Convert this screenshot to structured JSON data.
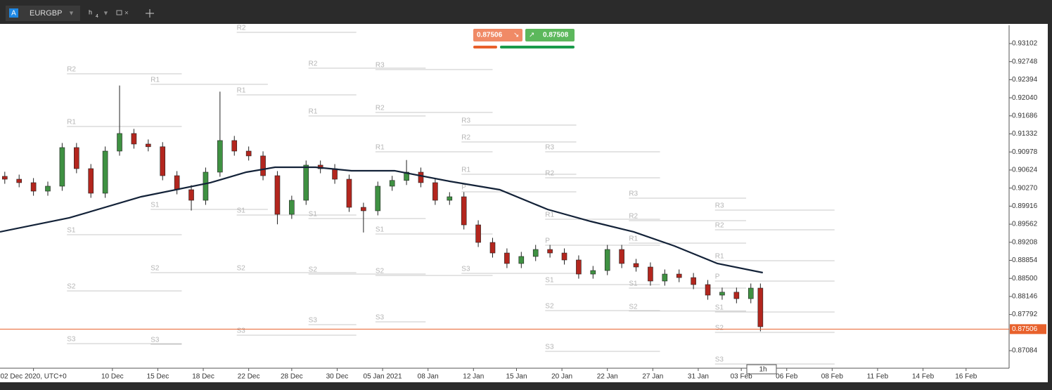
{
  "toolbar": {
    "badge": "A",
    "symbol": "EURGBP",
    "timeframe": "h",
    "timeframe_sub": "4"
  },
  "trade": {
    "sell": "0.87506",
    "buy": "0.87508"
  },
  "interval_badge": "1h",
  "chart_data": {
    "type": "candlestick",
    "xlim": [
      0,
      422
    ],
    "ylim": [
      0.8674,
      0.9346
    ],
    "yticks": [
      0.93102,
      0.92748,
      0.92394,
      {
        "value": 0.9204,
        "label": "0.92040"
      },
      0.91686,
      0.91332,
      0.90978,
      0.90624,
      {
        "value": 0.9027,
        "label": "0.90270"
      },
      0.89916,
      0.89562,
      0.89208,
      0.88854,
      {
        "value": 0.885,
        "label": "0.88500"
      },
      0.88146,
      0.87792,
      0.87084
    ],
    "xticks": [
      {
        "value": 14,
        "label": "02 Dec 2020, UTC+0"
      },
      {
        "value": 47,
        "label": "10 Dec"
      },
      {
        "value": 66,
        "label": "15 Dec"
      },
      {
        "value": 85,
        "label": "18 Dec"
      },
      {
        "value": 104,
        "label": "22 Dec"
      },
      {
        "value": 122,
        "label": "28 Dec"
      },
      {
        "value": 141,
        "label": "30 Dec"
      },
      {
        "value": 160,
        "label": "05 Jan 2021"
      },
      {
        "value": 179,
        "label": "08 Jan"
      },
      {
        "value": 198,
        "label": "12 Jan"
      },
      {
        "value": 216,
        "label": "15 Jan"
      },
      {
        "value": 235,
        "label": "20 Jan"
      },
      {
        "value": 254,
        "label": "22 Jan"
      },
      {
        "value": 273,
        "label": "27 Jan"
      },
      {
        "value": 292,
        "label": "31 Jan"
      },
      {
        "value": 310,
        "label": "03 Feb"
      },
      {
        "value": 329,
        "label": "06 Feb"
      },
      {
        "value": 348,
        "label": "08 Feb"
      },
      {
        "value": 367,
        "label": "11 Feb"
      },
      {
        "value": 386,
        "label": "14 Feb"
      },
      {
        "value": 404,
        "label": "16 Feb"
      }
    ],
    "up_color": "#3f9142",
    "down_color": "#b3261e",
    "candles": {
      "x": [
        2,
        8,
        14,
        20,
        26,
        32,
        38,
        44,
        50,
        56,
        62,
        68,
        74,
        80,
        86,
        92,
        98,
        104,
        110,
        116,
        122,
        128,
        134,
        140,
        146,
        152,
        158,
        164,
        170,
        176,
        182,
        188,
        194,
        200,
        206,
        212,
        218,
        224,
        230,
        236,
        242,
        248,
        254,
        260,
        266,
        272,
        278,
        284,
        290,
        296,
        302,
        308,
        314,
        318
      ],
      "open": [
        0.905,
        0.90444,
        0.90376,
        0.9021,
        0.90307,
        0.91064,
        0.90651,
        0.90169,
        0.90995,
        0.9134,
        0.91133,
        0.9108,
        0.90513,
        0.90238,
        0.90031,
        0.90582,
        0.91202,
        0.90995,
        0.909,
        0.90513,
        0.89756,
        0.90031,
        0.9072,
        0.9065,
        0.90444,
        0.89893,
        0.89825,
        0.90307,
        0.9042,
        0.90582,
        0.90376,
        0.90031,
        0.901,
        0.89549,
        0.89205,
        0.88998,
        0.88792,
        0.8893,
        0.89067,
        0.88998,
        0.88861,
        0.88585,
        0.88654,
        0.89067,
        0.88792,
        0.88723,
        0.88448,
        0.88585,
        0.88516,
        0.88379,
        0.88172,
        0.8823,
        0.88103,
        0.8831
      ],
      "high": [
        0.9059,
        0.90534,
        0.90466,
        0.90397,
        0.91154,
        0.91154,
        0.90741,
        0.91085,
        0.9228,
        0.9143,
        0.91223,
        0.9117,
        0.90603,
        0.90328,
        0.90672,
        0.9216,
        0.91292,
        0.91085,
        0.9099,
        0.90603,
        0.90121,
        0.9081,
        0.9081,
        0.9074,
        0.90534,
        0.89983,
        0.90397,
        0.9051,
        0.9082,
        0.90672,
        0.90466,
        0.9019,
        0.9019,
        0.89639,
        0.89295,
        0.89088,
        0.8902,
        0.89157,
        0.89157,
        0.89088,
        0.88951,
        0.88744,
        0.89157,
        0.89157,
        0.88882,
        0.88813,
        0.88675,
        0.88675,
        0.88606,
        0.88469,
        0.8832,
        0.8832,
        0.884,
        0.884
      ],
      "low": [
        0.90354,
        0.90286,
        0.9012,
        0.9012,
        0.90217,
        0.90561,
        0.90079,
        0.90079,
        0.90905,
        0.91043,
        0.9099,
        0.90423,
        0.90148,
        0.8983,
        0.89941,
        0.90492,
        0.90905,
        0.9081,
        0.90423,
        0.8956,
        0.89666,
        0.89941,
        0.9056,
        0.90354,
        0.89803,
        0.894,
        0.89735,
        0.90217,
        0.9033,
        0.90286,
        0.89941,
        0.89941,
        0.89459,
        0.89115,
        0.88908,
        0.88702,
        0.88702,
        0.8884,
        0.88908,
        0.88771,
        0.88495,
        0.88495,
        0.88564,
        0.88702,
        0.88633,
        0.88358,
        0.88358,
        0.88426,
        0.88289,
        0.88082,
        0.88082,
        0.88013,
        0.88013,
        0.87463
      ],
      "close": [
        0.90444,
        0.90376,
        0.9021,
        0.90307,
        0.91064,
        0.90651,
        0.90169,
        0.90995,
        0.9134,
        0.91133,
        0.9108,
        0.90513,
        0.90238,
        0.90031,
        0.90582,
        0.91202,
        0.90995,
        0.909,
        0.90513,
        0.89756,
        0.90031,
        0.9072,
        0.9065,
        0.90444,
        0.89893,
        0.89825,
        0.90307,
        0.9042,
        0.90582,
        0.90376,
        0.90031,
        0.901,
        0.89549,
        0.89205,
        0.88998,
        0.88792,
        0.8893,
        0.89067,
        0.88998,
        0.88861,
        0.88585,
        0.88654,
        0.89067,
        0.88792,
        0.88723,
        0.88448,
        0.88585,
        0.88516,
        0.88379,
        0.88172,
        0.8823,
        0.88103,
        0.8831,
        0.87553
      ]
    },
    "moving_average": {
      "color": "#132238",
      "x": [
        0,
        29,
        59,
        88,
        103,
        115,
        132,
        147,
        165,
        188,
        209,
        229,
        247,
        265,
        282,
        300,
        319
      ],
      "values": [
        0.89412,
        0.89687,
        0.901,
        0.90376,
        0.90582,
        0.90678,
        0.90678,
        0.9061,
        0.9061,
        0.90403,
        0.90238,
        0.89852,
        0.89618,
        0.89412,
        0.89136,
        0.88792,
        0.88613
      ]
    },
    "current_price": 0.87506,
    "current_color": "#e8612c",
    "pivots": [
      {
        "label": "R2",
        "start": 99,
        "end": 149,
        "value": 0.93322
      },
      {
        "label": "R2",
        "start": 28,
        "end": 76,
        "value": 0.9251
      },
      {
        "label": "R1",
        "start": 63,
        "end": 112,
        "value": 0.92303
      },
      {
        "label": "R2",
        "start": 129,
        "end": 178,
        "value": 0.9262
      },
      {
        "label": "R3",
        "start": 157,
        "end": 206,
        "value": 0.92593
      },
      {
        "label": "R1",
        "start": 99,
        "end": 149,
        "value": 0.92097
      },
      {
        "label": "R1",
        "start": 28,
        "end": 76,
        "value": 0.91477
      },
      {
        "label": "R1",
        "start": 129,
        "end": 178,
        "value": 0.91684
      },
      {
        "label": "R2",
        "start": 157,
        "end": 206,
        "value": 0.91753
      },
      {
        "label": "R3",
        "start": 193,
        "end": 241,
        "value": 0.91505
      },
      {
        "label": "R2",
        "start": 193,
        "end": 241,
        "value": 0.91174
      },
      {
        "label": "R1",
        "start": 157,
        "end": 206,
        "value": 0.90981
      },
      {
        "label": "R3",
        "start": 228,
        "end": 276,
        "value": 0.90981
      },
      {
        "label": "R1",
        "start": 193,
        "end": 241,
        "value": 0.90541
      },
      {
        "label": "R2",
        "start": 228,
        "end": 276,
        "value": 0.90472
      },
      {
        "label": "P",
        "start": 193,
        "end": 241,
        "value": 0.90197
      },
      {
        "label": "R3",
        "start": 263,
        "end": 312,
        "value": 0.90073
      },
      {
        "label": "S1",
        "start": 63,
        "end": 112,
        "value": 0.89852
      },
      {
        "label": "S1",
        "start": 99,
        "end": 149,
        "value": 0.89742
      },
      {
        "label": "R3",
        "start": 299,
        "end": 349,
        "value": 0.89838
      },
      {
        "label": "S1",
        "start": 129,
        "end": 178,
        "value": 0.89673
      },
      {
        "label": "R1",
        "start": 228,
        "end": 276,
        "value": 0.8966
      },
      {
        "label": "R2",
        "start": 263,
        "end": 312,
        "value": 0.89632
      },
      {
        "label": "R2",
        "start": 299,
        "end": 349,
        "value": 0.89453
      },
      {
        "label": "S1",
        "start": 28,
        "end": 76,
        "value": 0.89357
      },
      {
        "label": "S1",
        "start": 157,
        "end": 206,
        "value": 0.8937
      },
      {
        "label": "R1",
        "start": 263,
        "end": 312,
        "value": 0.89191
      },
      {
        "label": "P",
        "start": 228,
        "end": 276,
        "value": 0.8915
      },
      {
        "label": "R1",
        "start": 299,
        "end": 349,
        "value": 0.88847
      },
      {
        "label": "S2",
        "start": 63,
        "end": 112,
        "value": 0.88613
      },
      {
        "label": "S2",
        "start": 99,
        "end": 149,
        "value": 0.88612
      },
      {
        "label": "S2",
        "start": 129,
        "end": 178,
        "value": 0.88585
      },
      {
        "label": "S2",
        "start": 157,
        "end": 206,
        "value": 0.88558
      },
      {
        "label": "S3",
        "start": 193,
        "end": 241,
        "value": 0.88599
      },
      {
        "label": "P",
        "start": 299,
        "end": 349,
        "value": 0.88448
      },
      {
        "label": "S1",
        "start": 228,
        "end": 276,
        "value": 0.88379
      },
      {
        "label": "S1",
        "start": 263,
        "end": 312,
        "value": 0.8831
      },
      {
        "label": "S2",
        "start": 28,
        "end": 76,
        "value": 0.88255
      },
      {
        "label": "S1",
        "start": 299,
        "end": 349,
        "value": 0.87842
      },
      {
        "label": "S2",
        "start": 228,
        "end": 276,
        "value": 0.8787
      },
      {
        "label": "S2",
        "start": 263,
        "end": 312,
        "value": 0.8786
      },
      {
        "label": "S3",
        "start": 157,
        "end": 178,
        "value": 0.87649
      },
      {
        "label": "S3",
        "start": 129,
        "end": 149,
        "value": 0.87594
      },
      {
        "label": "S2",
        "start": 299,
        "end": 349,
        "value": 0.87442
      },
      {
        "label": "S3",
        "start": 99,
        "end": 149,
        "value": 0.87387
      },
      {
        "label": "S3",
        "start": 63,
        "end": 76,
        "value": 0.87208
      },
      {
        "label": "S3",
        "start": 28,
        "end": 76,
        "value": 0.87222
      },
      {
        "label": "S3",
        "start": 228,
        "end": 276,
        "value": 0.8707
      },
      {
        "label": "S3",
        "start": 299,
        "end": 349,
        "value": 0.86823
      }
    ]
  }
}
